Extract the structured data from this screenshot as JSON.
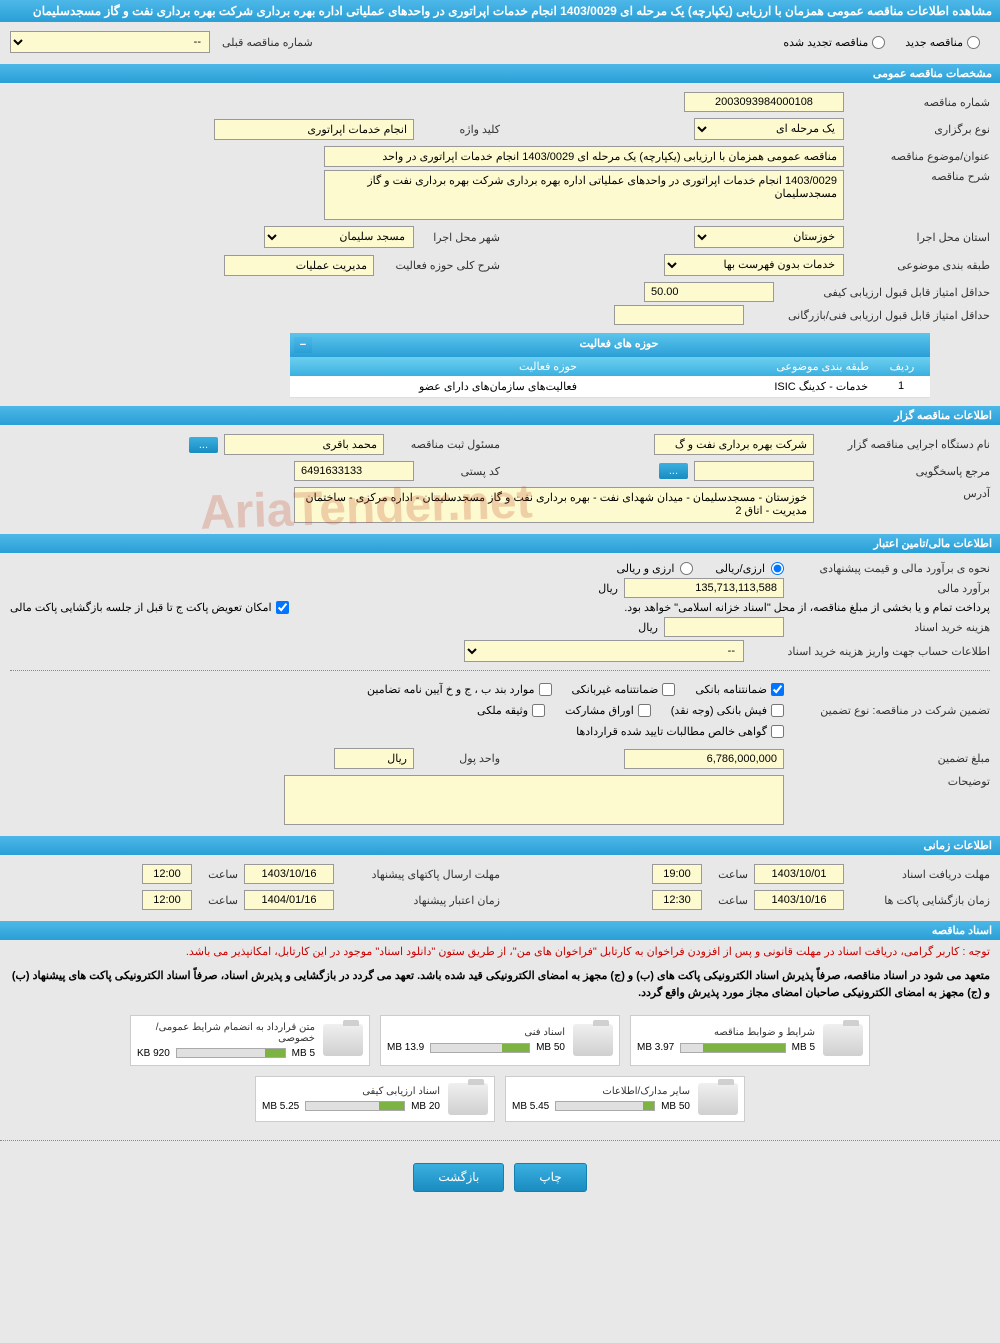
{
  "colors": {
    "header_bg_start": "#4db8e8",
    "header_bg_end": "#2a9fd6",
    "yellow_field": "#fdfad0",
    "page_bg": "#e8e8e8",
    "progress_green": "#7cb342",
    "warning_red": "#cc0000"
  },
  "page_title": "مشاهده اطلاعات مناقصه عمومی همزمان با ارزیابی (یکپارچه) یک مرحله ای 1403/0029 انجام خدمات اپراتوری در واحدهای عملیاتی اداره بهره برداری شرکت بهره برداری نفت و گاز مسجدسلیمان",
  "top_radio": {
    "opt1": "مناقصه جدید",
    "opt2": "مناقصه تجدید شده",
    "prev_label": "شماره مناقصه قبلی",
    "prev_value": "--"
  },
  "section_general": "مشخصات مناقصه عمومی",
  "general": {
    "tender_no_label": "شماره مناقصه",
    "tender_no": "2003093984000108",
    "type_label": "نوع برگزاری",
    "type_value": "یک مرحله ای",
    "keyword_label": "کلید واژه",
    "keyword": "انجام خدمات اپراتوری",
    "subject_label": "عنوان/موضوع مناقصه",
    "subject": "مناقصه عمومی همزمان با ارزیابی (یکپارچه) یک مرحله ای 1403/0029 انجام خدمات اپراتوری در واحد",
    "desc_label": "شرح مناقصه",
    "desc": "1403/0029 انجام خدمات اپراتوری در واحدهای عملیاتی اداره بهره برداری شرکت بهره برداری نفت و گاز مسجدسلیمان",
    "province_label": "استان محل اجرا",
    "province": "خوزستان",
    "city_label": "شهر محل اجرا",
    "city": "مسجد سلیمان",
    "category_label": "طبقه بندی موضوعی",
    "category": "خدمات بدون فهرست بها",
    "field_label": "شرح کلی حوزه فعالیت",
    "field": "مدیریت عملیات",
    "min_score_label": "حداقل امتیاز قابل قبول ارزیابی کیفی",
    "min_score": "50.00",
    "min_score2_label": "حداقل امتیاز قابل قبول ارزیابی فنی/بازرگانی",
    "min_score2": ""
  },
  "activity_table": {
    "title": "حوزه های فعالیت",
    "col_num": "ردیف",
    "col_cat": "طبقه بندی موضوعی",
    "col_field": "حوزه فعالیت",
    "row1_num": "1",
    "row1_cat": "خدمات - کدینگ ISIC",
    "row1_field": "فعالیت‌های سازمان‌های دارای عضو"
  },
  "section_org": "اطلاعات مناقصه گزار",
  "org": {
    "exec_label": "نام دستگاه اجرایی مناقصه گزار",
    "exec": "شرکت بهره برداری نفت و گ",
    "reg_label": "مسئول ثبت مناقصه",
    "reg": "محمد باقری",
    "resp_label": "مرجع پاسخگویی",
    "resp": "",
    "postal_label": "کد پستی",
    "postal": "6491633133",
    "addr_label": "آدرس",
    "addr": "خوزستان - مسجدسلیمان - میدان شهدای نفت - بهره برداری نفت و گاز مسجدسلیمان - اداره مرکزی - ساختمان مدیریت - اتاق 2"
  },
  "section_fin": "اطلاعات مالی/تامین اعتبار",
  "fin": {
    "method_label": "نحوه ی برآورد مالی و قیمت پیشنهادی",
    "method_opt1": "ارزی/ریالی",
    "method_opt2": "ارزی و ریالی",
    "estimate_label": "برآورد مالی",
    "estimate": "135,713,113,588",
    "currency": "ریال",
    "payment_note": "پرداخت تمام و یا بخشی از مبلغ مناقصه، از محل \"اسناد خزانه اسلامی\" خواهد بود.",
    "swap_label": "امکان تعویض پاکت ج تا قبل از جلسه بازگشایی پاکت مالی",
    "doc_cost_label": "هزینه خرید اسناد",
    "doc_cost": "",
    "account_label": "اطلاعات حساب جهت واریز هزینه خرید اسناد",
    "account": "--"
  },
  "guarantee": {
    "type_label": "تضمین شرکت در مناقصه:   نوع تضمین",
    "chk1": "ضمانتنامه بانکی",
    "chk2": "ضمانتنامه غیربانکی",
    "chk3": "موارد بند ب ، ج و خ آیین نامه تضامین",
    "chk4": "فیش بانکی (وجه نقد)",
    "chk5": "اوراق مشارکت",
    "chk6": "وثیقه ملکی",
    "chk7": "گواهی خالص مطالبات تایید شده قراردادها",
    "amount_label": "مبلغ تضمین",
    "amount": "6,786,000,000",
    "unit_label": "واحد پول",
    "unit": "ریال",
    "notes_label": "توضیحات"
  },
  "section_time": "اطلاعات زمانی",
  "time": {
    "receive_label": "مهلت دریافت اسناد",
    "receive_date": "1403/10/01",
    "receive_time": "19:00",
    "send_label": "مهلت ارسال پاکتهای پیشنهاد",
    "send_date": "1403/10/16",
    "send_time": "12:00",
    "open_label": "زمان بازگشایی پاکت ها",
    "open_date": "1403/10/16",
    "open_time": "12:30",
    "valid_label": "زمان اعتبار پیشنهاد",
    "valid_date": "1404/01/16",
    "valid_time": "12:00",
    "hour_label": "ساعت"
  },
  "section_docs": "اسناد مناقصه",
  "docs_warning1": "توجه : کاربر گرامی، دریافت اسناد در مهلت قانونی و پس از افزودن فراخوان به کارتابل \"فراخوان های من\"، از طریق ستون \"دانلود اسناد\" موجود در این کارتابل، امکانپذیر می باشد.",
  "docs_warning2": "متعهد می شود در اسناد مناقصه، صرفاً پذیرش اسناد الکترونیکی پاکت های (ب) و (ج) مجهز به امضای الکترونیکی قید شده باشد. تعهد می گردد در بازگشایی و پذیرش اسناد، صرفاً اسناد الکترونیکی پاکت های پیشنهاد (ب) و (ج) مجهز به امضای الکترونیکی صاحبان امضای مجاز مورد پذیرش واقع گردد.",
  "docs": [
    {
      "title": "شرایط و ضوابط مناقصه",
      "used": "3.97 MB",
      "total": "5 MB",
      "pct": 79
    },
    {
      "title": "اسناد فنی",
      "used": "13.9 MB",
      "total": "50 MB",
      "pct": 28
    },
    {
      "title": "متن قرارداد به انضمام شرایط عمومی/خصوصی",
      "used": "920 KB",
      "total": "5 MB",
      "pct": 18
    },
    {
      "title": "سایر مدارک/اطلاعات",
      "used": "5.45 MB",
      "total": "50 MB",
      "pct": 11
    },
    {
      "title": "اسناد ارزیابی کیفی",
      "used": "5.25 MB",
      "total": "20 MB",
      "pct": 26
    }
  ],
  "buttons": {
    "print": "چاپ",
    "back": "بازگشت",
    "more": "..."
  },
  "watermark": "AriaTender.net"
}
